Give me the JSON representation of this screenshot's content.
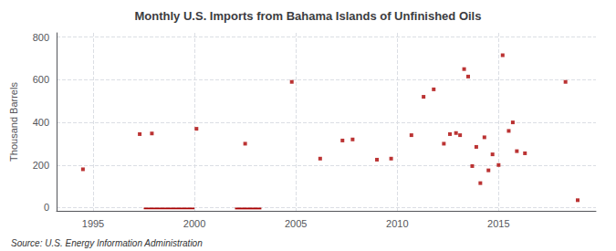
{
  "chart_data": {
    "type": "scatter",
    "title": "Monthly U.S. Imports from Bahama Islands of Unfinished Oils",
    "ylabel": "Thousand Barrels",
    "annotations": [
      "Source: U.S. Energy Information Administration"
    ],
    "xlim": [
      1993.2,
      2019.8
    ],
    "ylim": [
      -15,
      820
    ],
    "xticks": [
      1995,
      2000,
      2005,
      2010,
      2015
    ],
    "yticks": [
      0,
      200,
      400,
      600,
      800
    ],
    "grid": true,
    "series": [
      {
        "type": "scatter",
        "marker": "square",
        "color": "#aa0000",
        "x": [
          1994.5,
          1997.3,
          1997.9,
          2000.1,
          2002.5,
          2004.8,
          2006.2,
          2007.3,
          2007.8,
          2009.0,
          2009.7,
          2010.7,
          2011.3,
          2011.8,
          2012.3,
          2012.6,
          2012.9,
          2013.1,
          2013.3,
          2013.5,
          2013.7,
          2013.9,
          2014.1,
          2014.3,
          2014.5,
          2014.7,
          2015.0,
          2015.2,
          2015.5,
          2015.7,
          2015.9,
          2016.3,
          2018.3,
          2018.9
        ],
        "values": [
          180,
          345,
          348,
          370,
          300,
          590,
          230,
          315,
          320,
          225,
          230,
          340,
          520,
          555,
          300,
          345,
          350,
          340,
          650,
          615,
          195,
          285,
          115,
          330,
          175,
          250,
          200,
          715,
          360,
          400,
          265,
          255,
          590,
          35
        ]
      },
      {
        "type": "bar",
        "color": "#aa0000",
        "x_ranges": [
          [
            1997.5,
            2000.0
          ],
          [
            2002.0,
            2003.3
          ]
        ],
        "values": [
          -8,
          -8
        ]
      }
    ]
  }
}
